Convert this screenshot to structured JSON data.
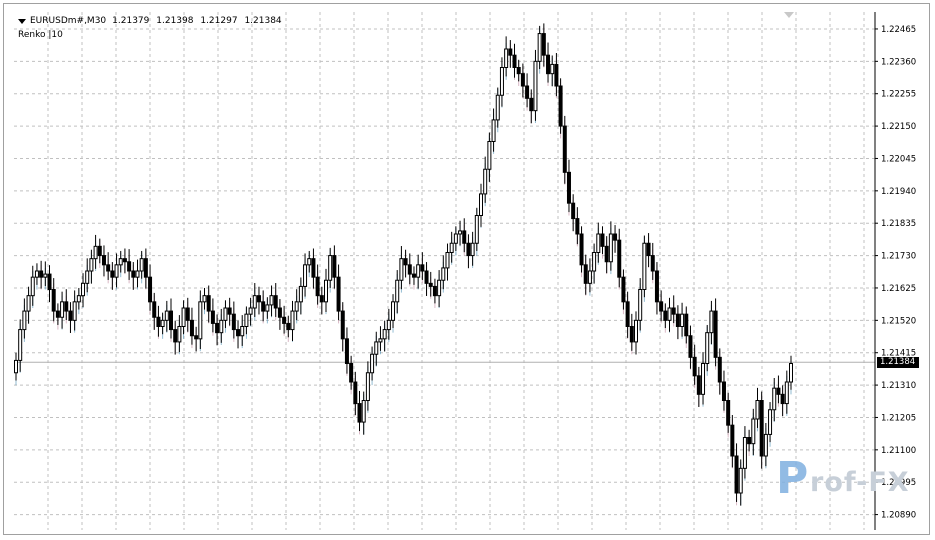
{
  "symbol_title": "EURUSDm#,M30",
  "ohlc": [
    "1.21379",
    "1.21398",
    "1.21297",
    "1.21384"
  ],
  "indicator_label": "Renko |10",
  "current_price": "1.21384",
  "watermark": {
    "initial": "P",
    "rest": "rof-FX"
  },
  "colors": {
    "bull": "#000000",
    "bear": "#000000",
    "renko_up": "#4a8fb5",
    "renko_down": "#c08aa0",
    "grid": "#c0c0c0"
  },
  "chart_data": {
    "type": "candlestick",
    "ylim": [
      1.2084,
      1.2252
    ],
    "y_ticks": [
      "1.22465",
      "1.22360",
      "1.22255",
      "1.22150",
      "1.22045",
      "1.21940",
      "1.21835",
      "1.21730",
      "1.21625",
      "1.21520",
      "1.21415",
      "1.21310",
      "1.21205",
      "1.21100",
      "1.20995",
      "1.20890"
    ],
    "close": [
      1.2139,
      1.2149,
      1.2155,
      1.216,
      1.2166,
      1.2168,
      1.2166,
      1.2167,
      1.2162,
      1.2155,
      1.2153,
      1.2158,
      1.2155,
      1.2152,
      1.2158,
      1.216,
      1.2164,
      1.2168,
      1.2172,
      1.2176,
      1.2173,
      1.217,
      1.2168,
      1.2166,
      1.217,
      1.2172,
      1.2171,
      1.2168,
      1.2166,
      1.2168,
      1.2172,
      1.2166,
      1.2158,
      1.2153,
      1.215,
      1.2152,
      1.2155,
      1.2149,
      1.2145,
      1.215,
      1.2156,
      1.2152,
      1.2147,
      1.2146,
      1.2158,
      1.216,
      1.2155,
      1.2151,
      1.2148,
      1.2152,
      1.2156,
      1.2154,
      1.2149,
      1.2147,
      1.215,
      1.2154,
      1.2156,
      1.216,
      1.2158,
      1.2155,
      1.2157,
      1.216,
      1.2156,
      1.2153,
      1.2151,
      1.2149,
      1.2155,
      1.2158,
      1.2163,
      1.217,
      1.2172,
      1.2166,
      1.216,
      1.2158,
      1.2165,
      1.2173,
      1.2166,
      1.2155,
      1.2146,
      1.2138,
      1.2132,
      1.2125,
      1.2119,
      1.2126,
      1.2135,
      1.2141,
      1.2145,
      1.2146,
      1.2149,
      1.2152,
      1.2158,
      1.2165,
      1.2172,
      1.217,
      1.2167,
      1.2166,
      1.217,
      1.2168,
      1.2164,
      1.2163,
      1.216,
      1.2165,
      1.2169,
      1.2174,
      1.2177,
      1.218,
      1.2181,
      1.2177,
      1.2173,
      1.2177,
      1.2186,
      1.2193,
      1.2201,
      1.221,
      1.2217,
      1.2225,
      1.2234,
      1.224,
      1.2238,
      1.2234,
      1.2232,
      1.2228,
      1.2224,
      1.222,
      1.2236,
      1.2245,
      1.2238,
      1.2232,
      1.2235,
      1.2228,
      1.2215,
      1.22,
      1.219,
      1.2185,
      1.218,
      1.217,
      1.2164,
      1.2168,
      1.2174,
      1.218,
      1.2176,
      1.2171,
      1.218,
      1.2178,
      1.2166,
      1.2158,
      1.215,
      1.2145,
      1.2152,
      1.2162,
      1.2177,
      1.2173,
      1.2168,
      1.2158,
      1.2155,
      1.2152,
      1.2156,
      1.2154,
      1.215,
      1.2154,
      1.2147,
      1.214,
      1.2134,
      1.2128,
      1.2138,
      1.2148,
      1.2155,
      1.214,
      1.2132,
      1.2126,
      1.2118,
      1.2108,
      1.2096,
      1.2104,
      1.2114,
      1.2112,
      1.212,
      1.2126,
      1.2108,
      1.2115,
      1.2123,
      1.213,
      1.2128,
      1.2125,
      1.2132,
      1.2138
    ]
  }
}
